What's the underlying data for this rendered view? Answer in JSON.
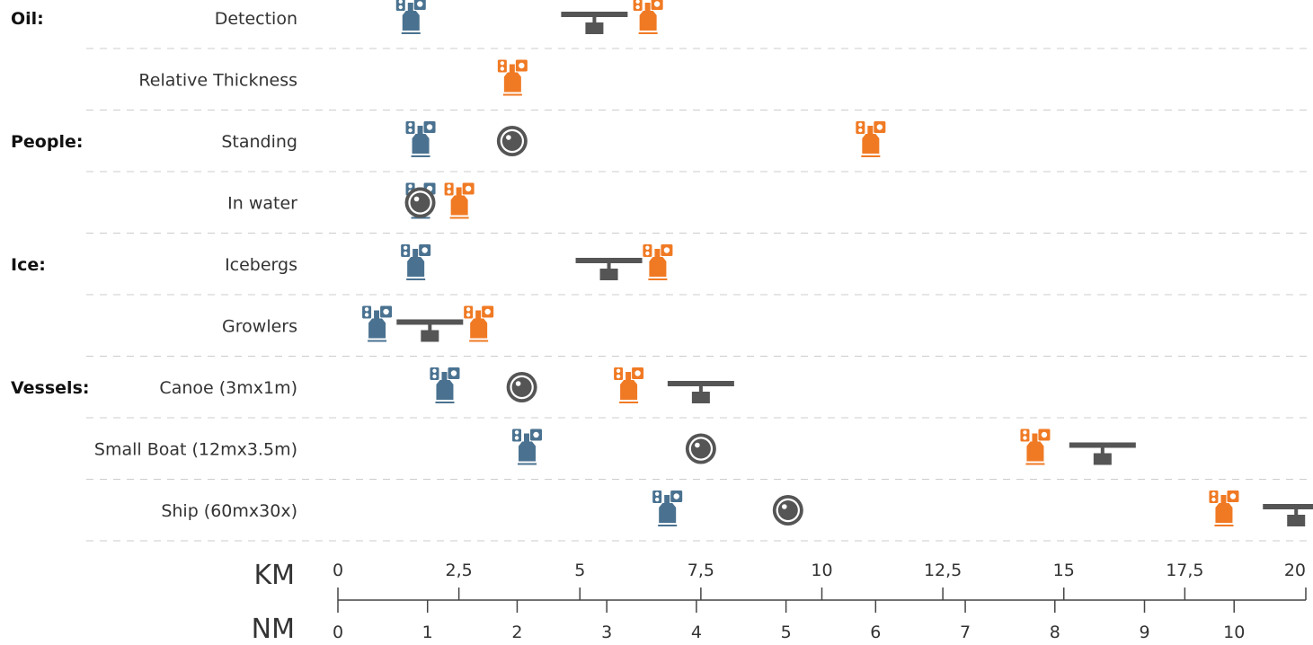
{
  "chart_data": {
    "type": "scatter",
    "title": "",
    "colors": {
      "satellite_blue": "#4a7290",
      "satellite_orange": "#f07a24",
      "sensor_gray": "#555555",
      "divider": "#cccccc",
      "axis": "#444444"
    },
    "rows": [
      {
        "group": "Oil:",
        "label": "Detection",
        "markers": [
          {
            "type": "satellite",
            "color": "blue",
            "km": 1.5
          },
          {
            "type": "radar",
            "km": 5.3
          },
          {
            "type": "satellite",
            "color": "orange",
            "km": 6.4
          }
        ]
      },
      {
        "group": "",
        "label": "Relative Thickness",
        "markers": [
          {
            "type": "satellite",
            "color": "orange",
            "km": 3.6
          }
        ]
      },
      {
        "group": "People:",
        "label": "Standing",
        "markers": [
          {
            "type": "satellite",
            "color": "blue",
            "km": 1.7
          },
          {
            "type": "camera",
            "km": 3.6
          },
          {
            "type": "satellite",
            "color": "orange",
            "km": 11.0
          }
        ]
      },
      {
        "group": "",
        "label": "In water",
        "markers": [
          {
            "type": "satellite",
            "color": "blue",
            "km": 1.7
          },
          {
            "type": "camera",
            "km": 1.7
          },
          {
            "type": "satellite",
            "color": "orange",
            "km": 2.5
          }
        ]
      },
      {
        "group": "Ice:",
        "label": "Icebergs",
        "markers": [
          {
            "type": "satellite",
            "color": "blue",
            "km": 1.6
          },
          {
            "type": "radar",
            "km": 5.6
          },
          {
            "type": "satellite",
            "color": "orange",
            "km": 6.6
          }
        ]
      },
      {
        "group": "",
        "label": "Growlers",
        "markers": [
          {
            "type": "satellite",
            "color": "blue",
            "km": 0.8
          },
          {
            "type": "radar",
            "km": 1.9
          },
          {
            "type": "satellite",
            "color": "orange",
            "km": 2.9
          }
        ]
      },
      {
        "group": "Vessels:",
        "label": "Canoe (3mx1m)",
        "markers": [
          {
            "type": "satellite",
            "color": "blue",
            "km": 2.2
          },
          {
            "type": "camera",
            "km": 3.8
          },
          {
            "type": "satellite",
            "color": "orange",
            "km": 6.0
          },
          {
            "type": "radar",
            "km": 7.5
          }
        ]
      },
      {
        "group": "",
        "label": "Small Boat (12mx3.5m)",
        "markers": [
          {
            "type": "satellite",
            "color": "blue",
            "km": 3.9
          },
          {
            "type": "camera",
            "km": 7.5
          },
          {
            "type": "satellite",
            "color": "orange",
            "km": 14.4
          },
          {
            "type": "radar",
            "km": 15.8
          }
        ]
      },
      {
        "group": "",
        "label": "Ship (60mx30x)",
        "markers": [
          {
            "type": "satellite",
            "color": "blue",
            "km": 6.8
          },
          {
            "type": "camera",
            "km": 9.3
          },
          {
            "type": "satellite",
            "color": "orange",
            "km": 18.3
          },
          {
            "type": "radar",
            "km": 19.8
          }
        ]
      }
    ],
    "axes": {
      "km": {
        "label": "KM",
        "ticks": [
          "0",
          "2,5",
          "5",
          "7,5",
          "10",
          "12,5",
          "15",
          "17,5",
          "20"
        ],
        "values": [
          0,
          2.5,
          5,
          7.5,
          10,
          12.5,
          15,
          17.5,
          20
        ],
        "range": [
          0,
          20
        ]
      },
      "nm": {
        "label": "NM",
        "ticks": [
          "0",
          "1",
          "2",
          "3",
          "4",
          "5",
          "6",
          "7",
          "8",
          "9",
          "10"
        ],
        "values": [
          0,
          1,
          2,
          3,
          4,
          5,
          6,
          7,
          8,
          9,
          10
        ],
        "range": [
          0,
          10.8
        ]
      }
    }
  }
}
